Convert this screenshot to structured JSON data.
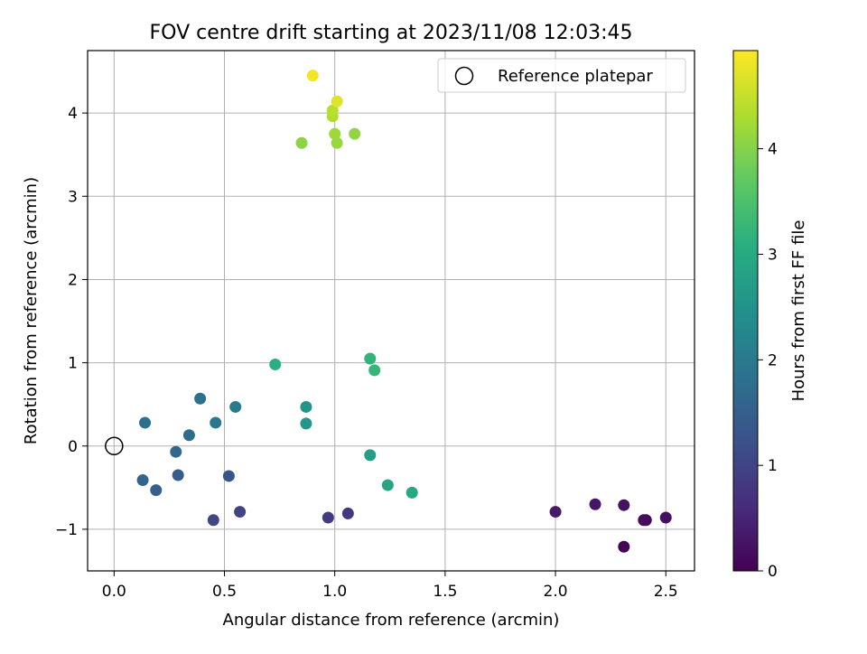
{
  "chart_data": {
    "type": "scatter",
    "title": "FOV centre drift starting at 2023/11/08 12:03:45",
    "xlabel": "Angular distance from reference (arcmin)",
    "ylabel": "Rotation from reference (arcmin)",
    "xlim": [
      -0.12,
      2.63
    ],
    "ylim": [
      -1.5,
      4.75
    ],
    "xticks": [
      0.0,
      0.5,
      1.0,
      1.5,
      2.0,
      2.5
    ],
    "xtick_labels": [
      "0.0",
      "0.5",
      "1.0",
      "1.5",
      "2.0",
      "2.5"
    ],
    "yticks": [
      -1,
      0,
      1,
      2,
      3,
      4
    ],
    "ytick_labels": [
      "−1",
      "0",
      "1",
      "2",
      "3",
      "4"
    ],
    "grid": true,
    "legend": {
      "label": "Reference platepar",
      "placement": "top-right"
    },
    "reference_point": {
      "x": 0.0,
      "y": 0.0
    },
    "colorbar": {
      "label": "Hours from first FF file",
      "colormap": "viridis",
      "range": [
        0,
        4.93
      ],
      "ticks": [
        0,
        1,
        2,
        3,
        4
      ],
      "tick_labels": [
        "0",
        "1",
        "2",
        "3",
        "4"
      ]
    },
    "points": [
      {
        "x": 2.31,
        "y": -1.21,
        "hours": 0.05
      },
      {
        "x": 2.41,
        "y": -0.89,
        "hours": 0.1
      },
      {
        "x": 2.4,
        "y": -0.89,
        "hours": 0.15
      },
      {
        "x": 2.5,
        "y": -0.86,
        "hours": 0.2
      },
      {
        "x": 2.31,
        "y": -0.71,
        "hours": 0.25
      },
      {
        "x": 2.18,
        "y": -0.7,
        "hours": 0.3
      },
      {
        "x": 2.0,
        "y": -0.79,
        "hours": 0.35
      },
      {
        "x": 1.06,
        "y": -0.81,
        "hours": 0.8
      },
      {
        "x": 0.97,
        "y": -0.86,
        "hours": 0.85
      },
      {
        "x": 0.57,
        "y": -0.79,
        "hours": 1.0
      },
      {
        "x": 0.45,
        "y": -0.89,
        "hours": 1.05
      },
      {
        "x": 0.52,
        "y": -0.36,
        "hours": 1.3
      },
      {
        "x": 0.29,
        "y": -0.35,
        "hours": 1.4
      },
      {
        "x": 0.19,
        "y": -0.53,
        "hours": 1.5
      },
      {
        "x": 0.13,
        "y": -0.41,
        "hours": 1.6
      },
      {
        "x": 0.28,
        "y": -0.07,
        "hours": 1.65
      },
      {
        "x": 0.34,
        "y": 0.13,
        "hours": 1.75
      },
      {
        "x": 0.14,
        "y": 0.28,
        "hours": 1.8
      },
      {
        "x": 0.39,
        "y": 0.57,
        "hours": 1.85
      },
      {
        "x": 0.46,
        "y": 0.28,
        "hours": 1.95
      },
      {
        "x": 0.55,
        "y": 0.47,
        "hours": 2.05
      },
      {
        "x": 0.87,
        "y": 0.47,
        "hours": 2.55
      },
      {
        "x": 0.87,
        "y": 0.27,
        "hours": 2.6
      },
      {
        "x": 1.16,
        "y": -0.11,
        "hours": 2.75
      },
      {
        "x": 1.24,
        "y": -0.47,
        "hours": 2.9
      },
      {
        "x": 1.35,
        "y": -0.56,
        "hours": 2.95
      },
      {
        "x": 0.73,
        "y": 0.98,
        "hours": 3.1
      },
      {
        "x": 1.16,
        "y": 1.05,
        "hours": 3.2
      },
      {
        "x": 1.18,
        "y": 0.91,
        "hours": 3.25
      },
      {
        "x": 0.85,
        "y": 3.64,
        "hours": 4.05
      },
      {
        "x": 1.09,
        "y": 3.75,
        "hours": 4.1
      },
      {
        "x": 1.01,
        "y": 3.64,
        "hours": 4.15
      },
      {
        "x": 1.0,
        "y": 3.75,
        "hours": 4.2
      },
      {
        "x": 0.99,
        "y": 3.96,
        "hours": 4.35
      },
      {
        "x": 0.99,
        "y": 4.03,
        "hours": 4.4
      },
      {
        "x": 1.01,
        "y": 4.14,
        "hours": 4.7
      },
      {
        "x": 0.9,
        "y": 4.45,
        "hours": 4.85
      }
    ]
  }
}
